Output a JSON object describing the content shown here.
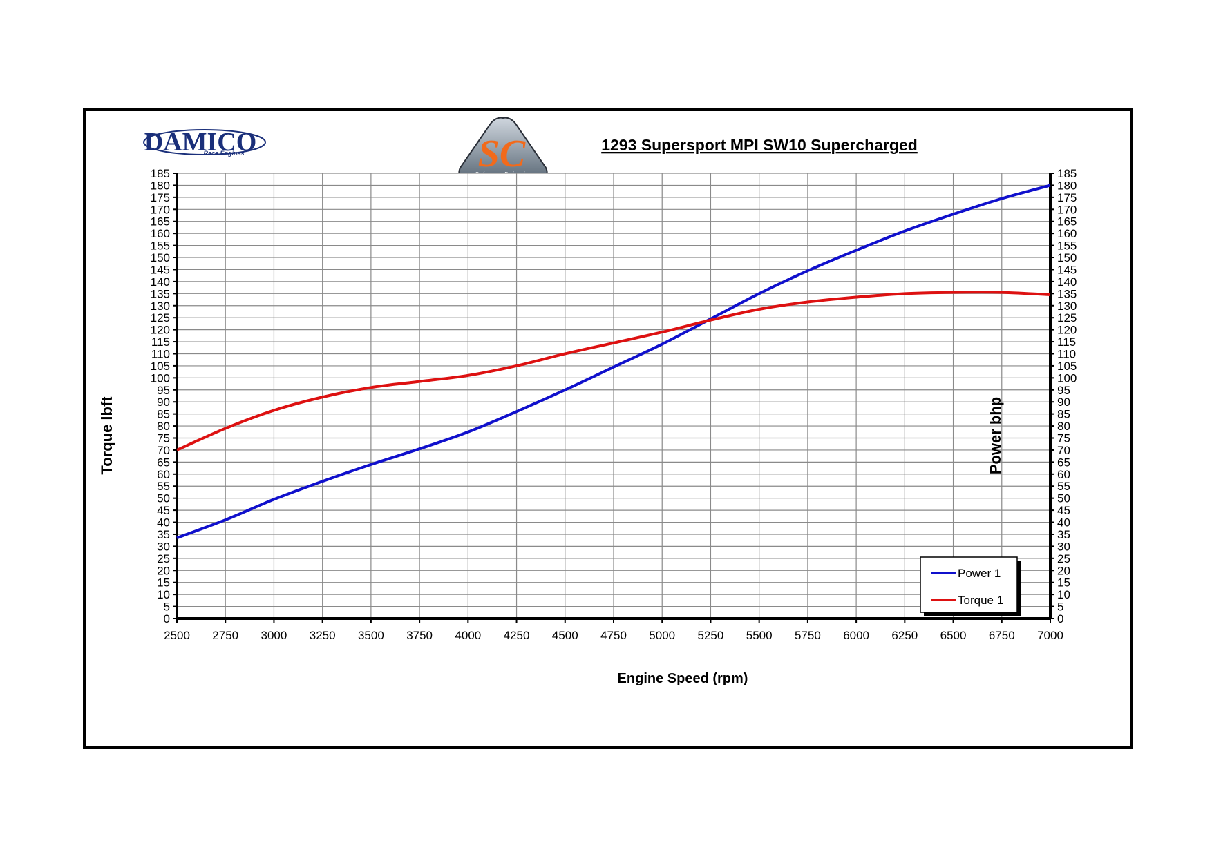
{
  "branding": {
    "damico_logo_text": "DAMICO",
    "damico_logo_sub": "Race Engines",
    "sc_logo_letters": "SC",
    "sc_logo_sub": "Performance Engineering"
  },
  "chart_data": {
    "type": "line",
    "title": "1293 Supersport MPI SW10 Supercharged",
    "xlabel": "Engine Speed (rpm)",
    "ylabel_left": "Torque lbft",
    "ylabel_right": "Power bhp",
    "xlim": [
      2500,
      7000
    ],
    "ylim": [
      0,
      185
    ],
    "x_ticks": [
      2500,
      2750,
      3000,
      3250,
      3500,
      3750,
      4000,
      4250,
      4500,
      4750,
      5000,
      5250,
      5500,
      5750,
      6000,
      6250,
      6500,
      6750,
      7000
    ],
    "y_ticks": [
      0,
      5,
      10,
      15,
      20,
      25,
      30,
      35,
      40,
      45,
      50,
      55,
      60,
      65,
      70,
      75,
      80,
      85,
      90,
      95,
      100,
      105,
      110,
      115,
      120,
      125,
      130,
      135,
      140,
      145,
      150,
      155,
      160,
      165,
      170,
      175,
      180,
      185
    ],
    "grid": true,
    "legend_position": "bottom-right",
    "x": [
      2500,
      2750,
      3000,
      3250,
      3500,
      3750,
      4000,
      4250,
      4500,
      4750,
      5000,
      5250,
      5500,
      5750,
      6000,
      6250,
      6500,
      6750,
      7000
    ],
    "series": [
      {
        "name": "Power 1",
        "color": "#1010cc",
        "values": [
          33.5,
          41,
          49.5,
          57,
          64,
          70.5,
          77.5,
          86,
          95,
          104.5,
          114,
          124.5,
          135,
          144.5,
          153,
          161,
          168,
          174.5,
          180
        ]
      },
      {
        "name": "Torque 1",
        "color": "#dd1111",
        "values": [
          70,
          79,
          86.5,
          92,
          96,
          98.5,
          101,
          105,
          110,
          114.5,
          119,
          124,
          128.5,
          131.5,
          133.5,
          135,
          135.5,
          135.5,
          134.5
        ]
      }
    ]
  }
}
